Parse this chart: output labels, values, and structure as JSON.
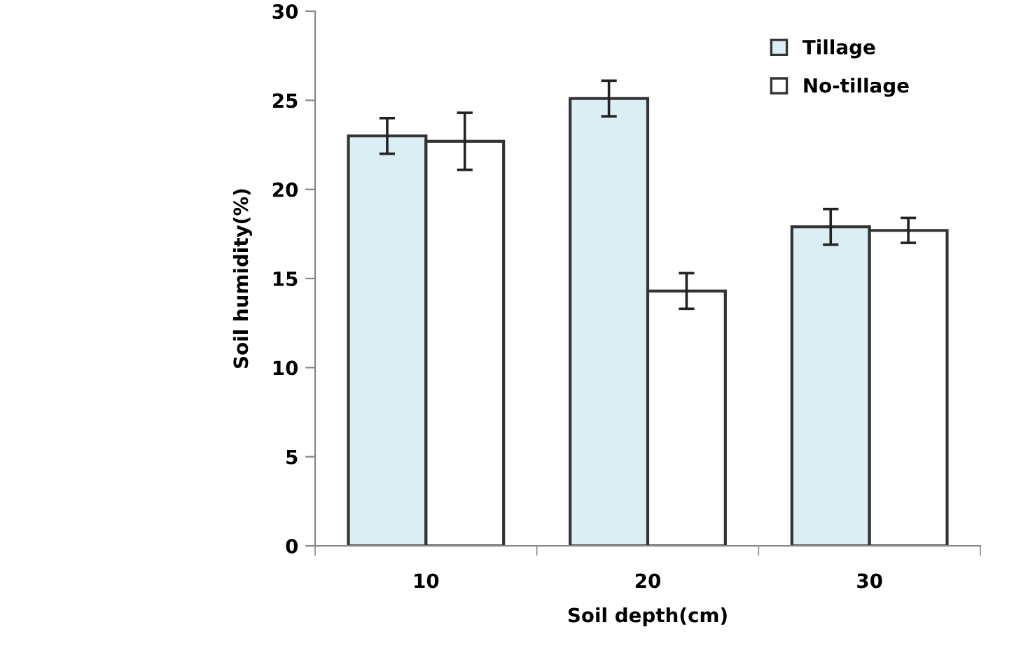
{
  "chart_data": {
    "type": "bar",
    "xlabel": "Soil depth(cm)",
    "ylabel": "Soil humidity(%)",
    "categories": [
      "10",
      "20",
      "30"
    ],
    "series": [
      {
        "name": "Tillage",
        "color": "#dbeef4",
        "values": [
          23.0,
          25.1,
          17.9
        ],
        "errors": [
          1.0,
          1.0,
          1.0
        ]
      },
      {
        "name": "No-tillage",
        "color": "#ffffff",
        "values": [
          22.7,
          14.3,
          17.7
        ],
        "errors": [
          1.6,
          1.0,
          0.7
        ]
      }
    ],
    "ylim": [
      0,
      30
    ],
    "yticks": [
      0,
      5,
      10,
      15,
      20,
      25,
      30
    ],
    "grid": false,
    "legend": "top right"
  }
}
